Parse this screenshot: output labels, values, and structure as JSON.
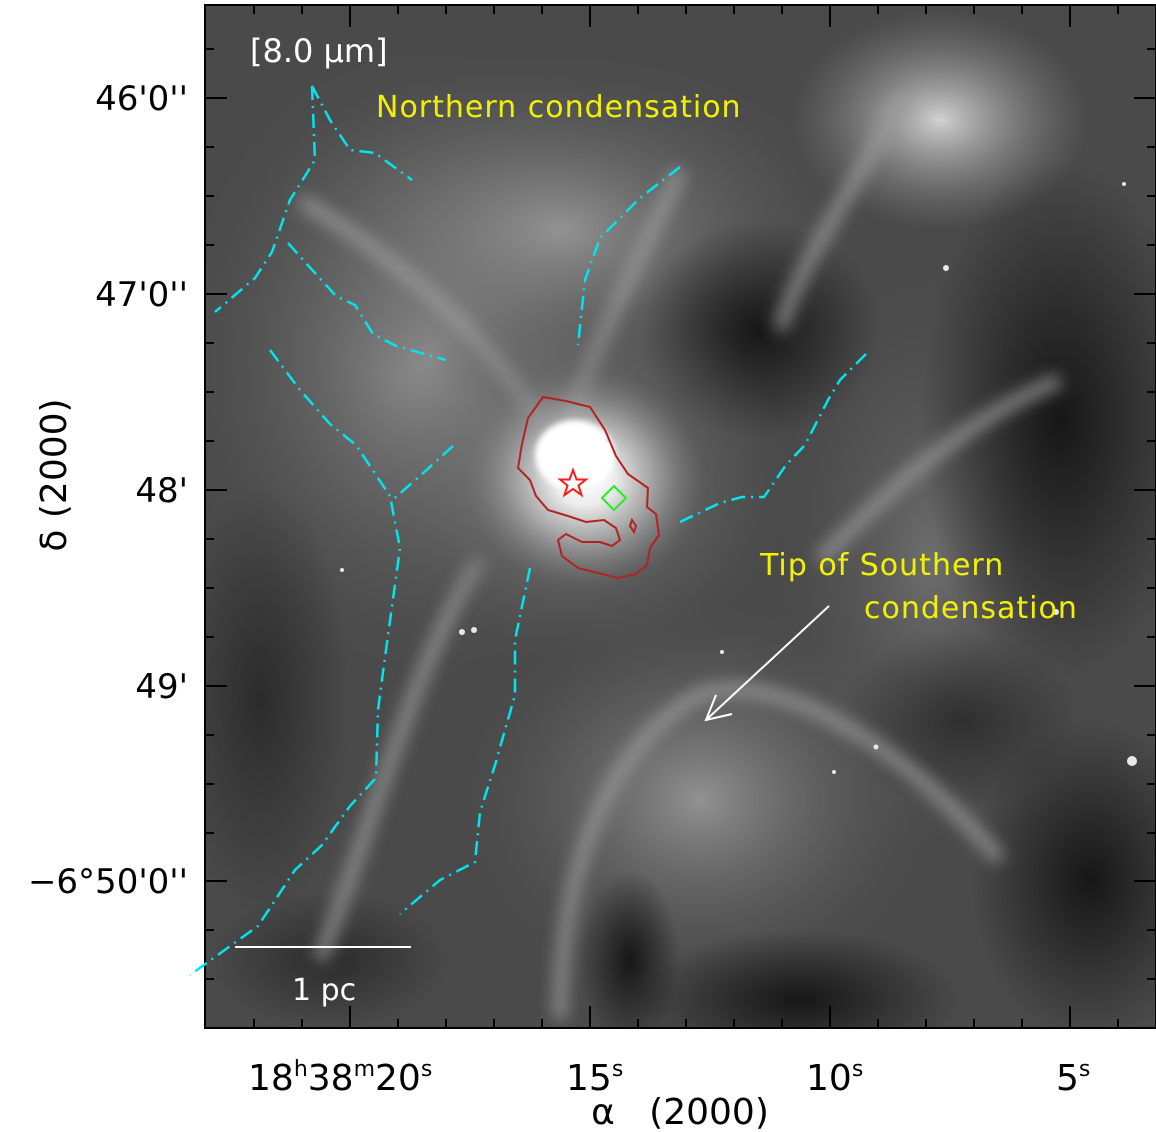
{
  "figure": {
    "band_label": "[8.0 μm]",
    "annotations": {
      "northern": "Northern condensation",
      "southern_line1": "Tip of Southern",
      "southern_line2": "condensation"
    },
    "scale_bar_label": "1 pc",
    "x_axis": {
      "label": "α   (2000)",
      "ticks": [
        {
          "h": "18",
          "hs": "h",
          "m": "38",
          "ms": "m",
          "s": "20",
          "ss": "s"
        },
        {
          "s": "15",
          "ss": "s"
        },
        {
          "s": "10",
          "ss": "s"
        },
        {
          "s": "5",
          "ss": "s"
        }
      ]
    },
    "y_axis": {
      "label": "δ (2000)",
      "ticks": [
        "46'0''",
        "47'0''",
        "48'",
        "49'",
        "−6°50'0''"
      ]
    },
    "colors": {
      "contour_lines": "#00e5ee",
      "contour_red": "#b22222",
      "star_marker": "#ff1a1a",
      "diamond_marker": "#22ee22",
      "label_yellow": "#f2f200"
    },
    "markers": {
      "star": "star-icon",
      "diamond": "diamond-icon"
    }
  }
}
